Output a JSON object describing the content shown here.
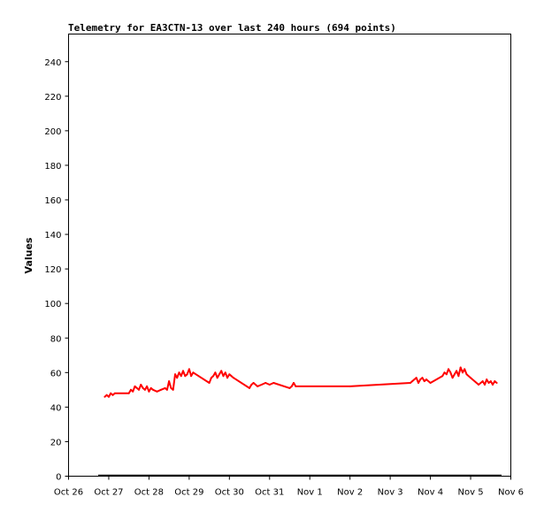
{
  "chart_data": {
    "type": "line",
    "title": "Telemetry for EA3CTN-13 over last 240 hours (694 points)",
    "xlabel": "",
    "ylabel": "Values",
    "ylim": [
      0,
      256
    ],
    "yticks": [
      0,
      20,
      40,
      60,
      80,
      100,
      120,
      140,
      160,
      180,
      200,
      220,
      240
    ],
    "x_tick_labels": [
      "Oct 26",
      "Oct 27",
      "Oct 28",
      "Oct 29",
      "Oct 30",
      "Oct 31",
      "Nov 1",
      "Nov 2",
      "Nov 3",
      "Nov 4",
      "Nov 5",
      "Nov 6"
    ],
    "xlim_days": [
      0,
      11
    ],
    "grid": false,
    "series": [
      {
        "color": "#ff0000",
        "x_days": [
          0.9,
          0.95,
          1.0,
          1.05,
          1.1,
          1.15,
          1.5,
          1.55,
          1.6,
          1.65,
          1.7,
          1.75,
          1.8,
          1.85,
          1.9,
          1.95,
          2.0,
          2.05,
          2.1,
          2.2,
          2.3,
          2.4,
          2.45,
          2.5,
          2.55,
          2.6,
          2.65,
          2.7,
          2.75,
          2.8,
          2.85,
          2.9,
          2.95,
          3.0,
          3.05,
          3.1,
          3.5,
          3.55,
          3.6,
          3.65,
          3.7,
          3.75,
          3.8,
          3.85,
          3.9,
          3.95,
          4.0,
          4.05,
          4.1,
          4.5,
          4.55,
          4.6,
          4.7,
          4.8,
          4.9,
          5.0,
          5.1,
          5.5,
          5.55,
          5.6,
          5.65,
          7.0,
          8.5,
          8.55,
          8.6,
          8.65,
          8.7,
          8.75,
          8.8,
          8.85,
          8.9,
          9.0,
          9.3,
          9.35,
          9.4,
          9.45,
          9.5,
          9.55,
          9.6,
          9.65,
          9.7,
          9.75,
          9.8,
          9.85,
          9.9,
          10.0,
          10.2,
          10.3,
          10.35,
          10.4,
          10.45,
          10.5,
          10.55,
          10.6,
          10.65
        ],
        "y": [
          46,
          47,
          46,
          48,
          47,
          48,
          48,
          50,
          49,
          52,
          51,
          50,
          53,
          51,
          50,
          52,
          49,
          51,
          50,
          49,
          50,
          51,
          50,
          55,
          51,
          50,
          59,
          57,
          60,
          58,
          61,
          58,
          59,
          62,
          58,
          60,
          54,
          57,
          58,
          60,
          57,
          59,
          61,
          58,
          60,
          57,
          59,
          58,
          57,
          51,
          53,
          54,
          52,
          53,
          54,
          53,
          54,
          51,
          52,
          54,
          52,
          52,
          54,
          55,
          56,
          57,
          54,
          56,
          57,
          55,
          56,
          54,
          58,
          60,
          59,
          62,
          60,
          57,
          59,
          61,
          58,
          63,
          60,
          62,
          59,
          57,
          53,
          55,
          53,
          56,
          54,
          55,
          53,
          55,
          54
        ]
      }
    ]
  }
}
